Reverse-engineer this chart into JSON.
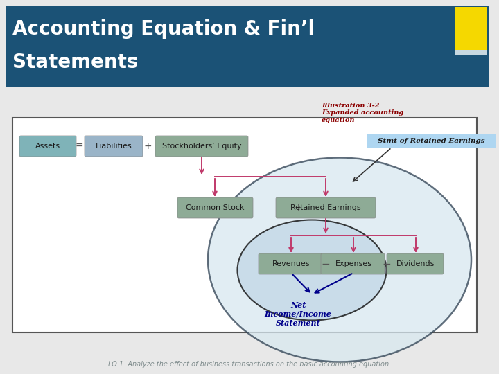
{
  "title_line1": "Accounting Equation & Fin’l",
  "title_line2": "Statements",
  "title_bg": "#1b5276",
  "title_color": "#ffffff",
  "yellow_color": "#f5d800",
  "bg_color": "#e8e8e8",
  "illustration_text": "Illustration 3-2\nExpanded accounting\nequation",
  "illustration_color": "#8b0000",
  "stmt_retained_text": "Stmt of Retained Earnings",
  "stmt_retained_bg": "#aed6f1",
  "net_income_text": "Net\nIncome/Income\nStatement",
  "net_income_color": "#00008b",
  "lo_text": "LO 1  Analyze the effect of business transactions on the basic accounting equation.",
  "lo_color": "#7f8c8d",
  "box_teal": "#7fb3b8",
  "box_blue_lt": "#9ab4c8",
  "box_green": "#8eab96",
  "content_bg": "#ffffff",
  "outer_ellipse_fill": "#d8e8f0",
  "inner_ellipse_fill": "#c5dae8",
  "arrow_pink": "#c0396a",
  "arrow_blue": "#00008b",
  "border_color": "#555555"
}
